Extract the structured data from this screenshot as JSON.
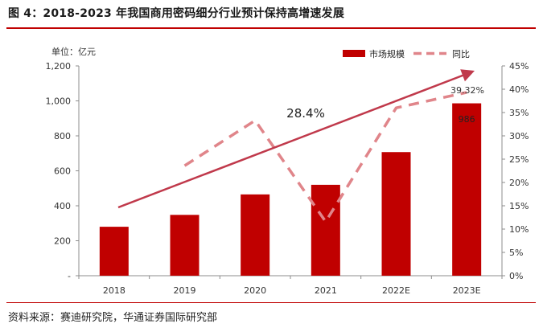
{
  "figure": {
    "title": "图 4：2018-2023 年我国商用密码细分行业预计保持高增速发展",
    "source": "资料来源：赛迪研究院，华通证券国际研究部"
  },
  "chart_data": {
    "type": "bar",
    "categories": [
      "2018",
      "2019",
      "2020",
      "2021",
      "2022E",
      "2023E"
    ],
    "series": [
      {
        "name": "市场规模",
        "type": "bar",
        "axis": "left",
        "values": [
          280,
          348,
          465,
          520,
          707,
          986
        ],
        "color": "#c00000"
      },
      {
        "name": "同比",
        "type": "line",
        "style": "dashed",
        "axis": "right",
        "values": [
          null,
          23.6,
          33.3,
          11.6,
          36.0,
          39.32
        ],
        "color": "#e0858a"
      }
    ],
    "y_left": {
      "unit_label": "单位：亿元",
      "ylim": [
        0,
        1200
      ],
      "ticks": [
        "-",
        "200",
        "400",
        "600",
        "800",
        "1,000",
        "1,200"
      ]
    },
    "y_right": {
      "ylim": [
        0,
        45
      ],
      "ticks": [
        "0%",
        "5%",
        "10%",
        "15%",
        "20%",
        "25%",
        "30%",
        "35%",
        "40%",
        "45%"
      ]
    },
    "annotations": {
      "cagr_label": "28.4%",
      "last_growth_label": "39.32%",
      "last_bar_label": "986"
    },
    "legend_position": "top-right",
    "grid": false,
    "trend_arrow_color": "#c0394b"
  }
}
